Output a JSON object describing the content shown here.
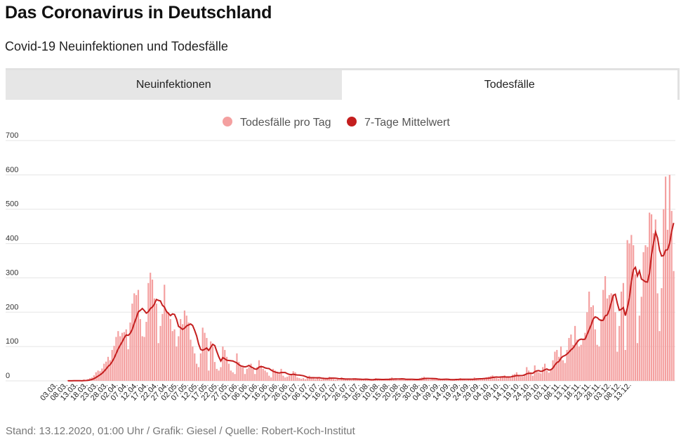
{
  "header": {
    "title": "Das Coronavirus in Deutschland",
    "subtitle": "Covid-19 Neuinfektionen und Todesfälle"
  },
  "tabs": [
    {
      "label": "Neuinfektionen",
      "active": false
    },
    {
      "label": "Todesfälle",
      "active": true
    }
  ],
  "footer": {
    "source": "Stand: 13.12.2020, 01:00 Uhr / Grafik: Giesel / Quelle: Robert-Koch-Institut"
  },
  "colors": {
    "bar": "#f4a0a0",
    "line": "#c41e1e",
    "grid": "#e5e5e5"
  },
  "chart_data": {
    "type": "bar",
    "title": "Todesfälle",
    "legend": [
      "Todesfälle pro Tag",
      "7-Tage Mittelwert"
    ],
    "legend_position": "top-center",
    "ylim": [
      0,
      700
    ],
    "yticks": [
      0,
      100,
      200,
      300,
      400,
      500,
      600,
      700
    ],
    "start_date": "2020-03-03",
    "end_date": "2020-12-13",
    "xtick_labels": [
      "03.03.",
      "08.03.",
      "13.03.",
      "18.03.",
      "23.03.",
      "28.03.",
      "02.04.",
      "07.04.",
      "12.04.",
      "17.04.",
      "22.04.",
      "27.04.",
      "02.05.",
      "07.05.",
      "12.05.",
      "17.05.",
      "22.05.",
      "27.05.",
      "01.06.",
      "06.06.",
      "11.06.",
      "16.06.",
      "21.06.",
      "26.06.",
      "01.07.",
      "06.07.",
      "11.07.",
      "16.07.",
      "21.07.",
      "26.07.",
      "31.07.",
      "05.08.",
      "10.08.",
      "15.08.",
      "20.08.",
      "25.08.",
      "30.08.",
      "04.09.",
      "09.09.",
      "14.09.",
      "19.09.",
      "24.09.",
      "29.09.",
      "04.10.",
      "09.10.",
      "14.10.",
      "19.10.",
      "24.10.",
      "29.10.",
      "03.11.",
      "08.11.",
      "13.11.",
      "18.11.",
      "23.11.",
      "28.11.",
      "03.12.",
      "08.12.",
      "13.12."
    ],
    "series": [
      {
        "name": "Todesfälle pro Tag",
        "kind": "bar",
        "values": [
          0,
          0,
          0,
          0,
          0,
          0,
          2,
          0,
          0,
          2,
          0,
          0,
          0,
          0,
          4,
          2,
          5,
          8,
          10,
          16,
          25,
          30,
          28,
          36,
          50,
          56,
          70,
          60,
          90,
          102,
          128,
          145,
          130,
          140,
          142,
          150,
          92,
          170,
          225,
          255,
          250,
          265,
          180,
          130,
          128,
          172,
          285,
          315,
          295,
          240,
          225,
          110,
          160,
          195,
          280,
          205,
          200,
          180,
          145,
          150,
          100,
          130,
          180,
          165,
          205,
          190,
          170,
          120,
          100,
          80,
          50,
          40,
          80,
          155,
          140,
          125,
          30,
          115,
          100,
          55,
          35,
          30,
          40,
          100,
          90,
          70,
          50,
          30,
          25,
          20,
          80,
          55,
          45,
          40,
          20,
          35,
          40,
          50,
          35,
          20,
          40,
          60,
          45,
          35,
          30,
          25,
          15,
          10,
          35,
          30,
          25,
          20,
          35,
          15,
          10,
          12,
          15,
          20,
          28,
          25,
          10,
          8,
          6,
          8,
          5,
          12,
          15,
          10,
          8,
          5,
          8,
          6,
          4,
          10,
          8,
          6,
          12,
          10,
          5,
          3,
          4,
          2,
          10,
          8,
          6,
          5,
          3,
          2,
          6,
          8,
          6,
          4,
          3,
          2,
          5,
          4,
          3,
          2,
          6,
          8,
          5,
          3,
          2,
          3,
          4,
          6,
          8,
          10,
          5,
          3,
          2,
          6,
          8,
          5,
          4,
          5,
          3,
          2,
          4,
          5,
          6,
          8,
          10,
          12,
          6,
          4,
          3,
          5,
          6,
          8,
          4,
          3,
          2,
          5,
          6,
          4,
          3,
          2,
          4,
          5,
          6,
          8,
          4,
          3,
          2,
          4,
          5,
          6,
          10,
          8,
          6,
          4,
          6,
          8,
          10,
          12,
          14,
          16,
          10,
          8,
          6,
          12,
          14,
          16,
          12,
          10,
          8,
          18,
          20,
          25,
          15,
          12,
          12,
          20,
          40,
          30,
          25,
          15,
          45,
          30,
          25,
          22,
          40,
          50,
          30,
          24,
          35,
          60,
          85,
          90,
          70,
          100,
          60,
          52,
          90,
          125,
          135,
          105,
          160,
          120,
          100,
          105,
          120,
          140,
          200,
          260,
          215,
          220,
          150,
          105,
          100,
          180,
          265,
          305,
          240,
          250,
          255,
          250,
          200,
          85,
          160,
          260,
          285,
          90,
          410,
          400,
          425,
          395,
          310,
          110,
          190,
          245,
          375,
          395,
          390,
          490,
          485,
          430,
          470,
          255,
          145,
          270,
          500,
          595,
          440,
          600,
          495,
          320
        ]
      },
      {
        "name": "7-Tage Mittelwert",
        "kind": "line"
      }
    ]
  }
}
